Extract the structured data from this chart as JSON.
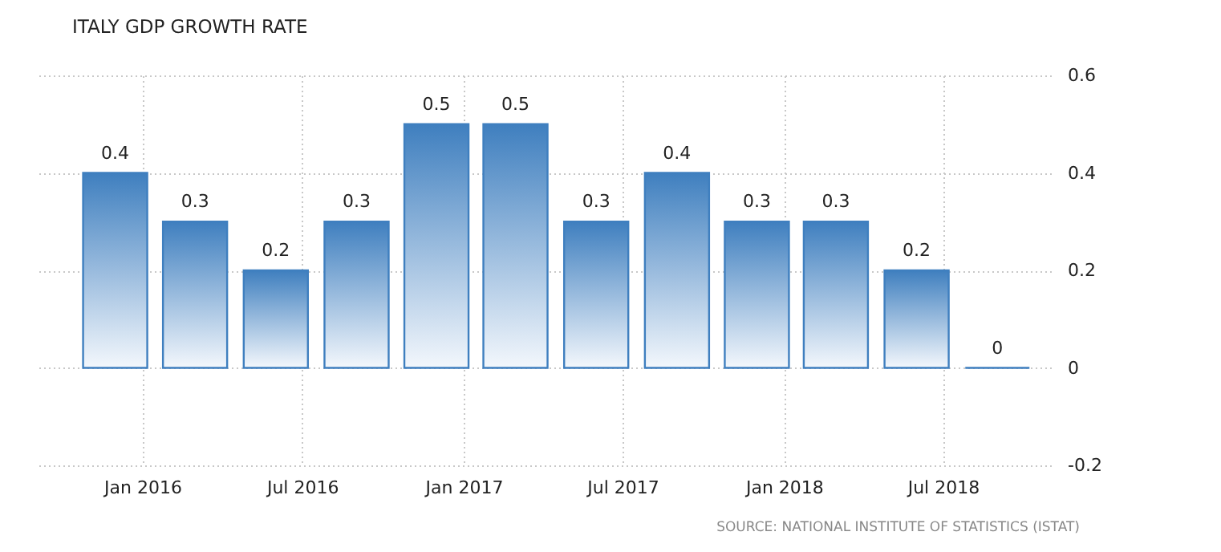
{
  "chart_data": {
    "type": "bar",
    "title": "ITALY GDP GROWTH RATE",
    "x": [
      "2015-12",
      "2016-03",
      "2016-06",
      "2016-09",
      "2016-12",
      "2017-03",
      "2017-06",
      "2017-09",
      "2017-12",
      "2018-03",
      "2018-06",
      "2018-09"
    ],
    "series": [
      {
        "color": "#3f7fbf",
        "values": [
          0.4,
          0.3,
          0.2,
          0.3,
          0.5,
          0.5,
          0.3,
          0.4,
          0.3,
          0.3,
          0.2,
          0
        ]
      }
    ],
    "data_labels": true,
    "xlim": [
      "2015-09",
      "2018-11"
    ],
    "xticks": [
      {
        "value": "2016-01",
        "label": "Jan 2016"
      },
      {
        "value": "2016-07",
        "label": "Jul 2016"
      },
      {
        "value": "2017-01",
        "label": "Jan 2017"
      },
      {
        "value": "2017-07",
        "label": "Jul 2017"
      },
      {
        "value": "2018-01",
        "label": "Jan 2018"
      },
      {
        "value": "2018-07",
        "label": "Jul 2018"
      }
    ],
    "ylim": [
      -0.2,
      0.6
    ],
    "yticks": [
      -0.2,
      0,
      0.2,
      0.4,
      0.6
    ],
    "grid": true,
    "annotations": [
      "SOURCE: NATIONAL INSTITUTE OF STATISTICS (ISTAT)"
    ]
  }
}
